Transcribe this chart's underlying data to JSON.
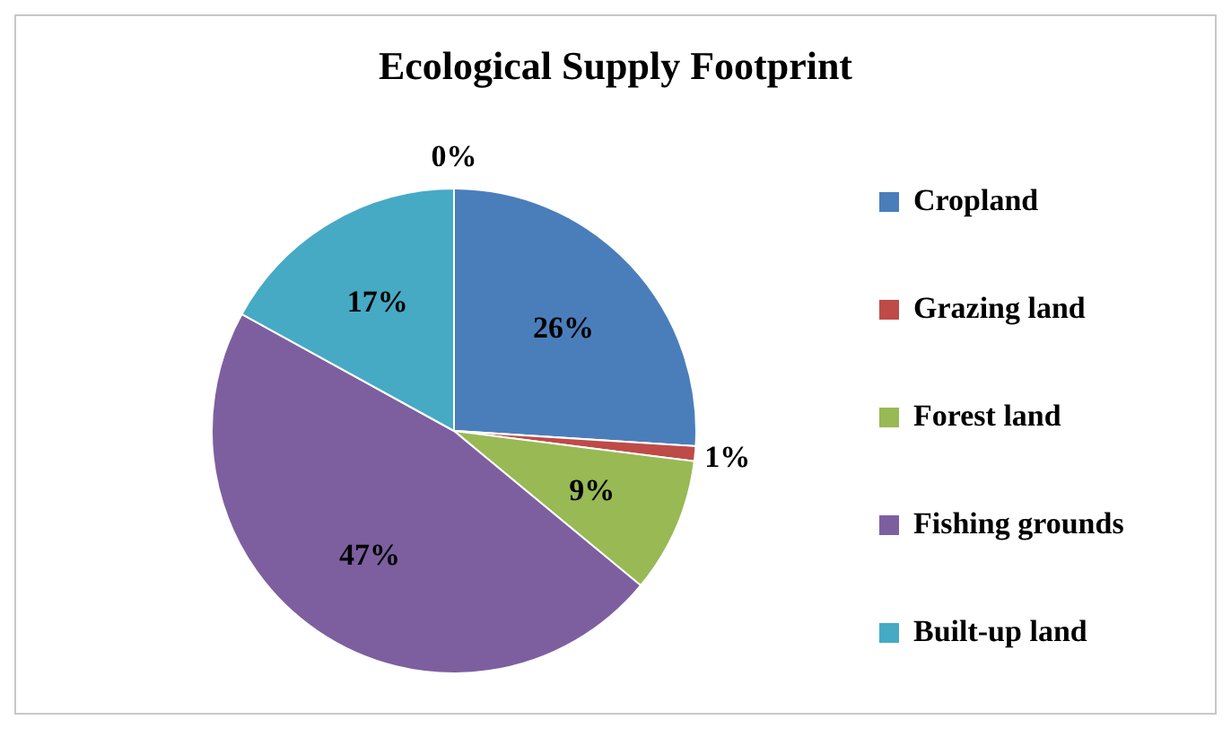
{
  "chart_data": {
    "type": "pie",
    "title": "Ecological Supply Footprint",
    "categories": [
      "Cropland",
      "Grazing land",
      "Forest land",
      "Fishing grounds",
      "Built-up land",
      null
    ],
    "values": [
      26,
      1,
      9,
      47,
      17,
      0
    ],
    "colors": [
      "#4a7ebb",
      "#be4b48",
      "#98b954",
      "#7d5fa0",
      "#46aac5",
      "#f79646"
    ],
    "value_labels": [
      "26%",
      "1%",
      "9%",
      "47%",
      "17%",
      "0%"
    ],
    "legend": "right"
  }
}
